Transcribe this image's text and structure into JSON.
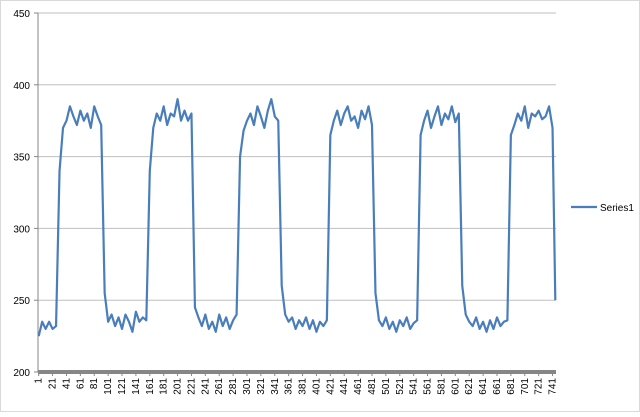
{
  "chart_data": {
    "type": "line",
    "series": [
      {
        "name": "Series1",
        "color": "#4a7ebb",
        "x": [
          1,
          6,
          11,
          16,
          21,
          26,
          31,
          36,
          41,
          46,
          51,
          56,
          61,
          66,
          71,
          76,
          81,
          86,
          91,
          96,
          101,
          106,
          111,
          116,
          121,
          126,
          131,
          136,
          141,
          146,
          151,
          156,
          161,
          166,
          171,
          176,
          181,
          186,
          191,
          196,
          201,
          206,
          211,
          216,
          221,
          226,
          231,
          236,
          241,
          246,
          251,
          256,
          261,
          266,
          271,
          276,
          281,
          286,
          291,
          296,
          301,
          306,
          311,
          316,
          321,
          326,
          331,
          336,
          341,
          346,
          351,
          356,
          361,
          366,
          371,
          376,
          381,
          386,
          391,
          396,
          401,
          406,
          411,
          416,
          421,
          426,
          431,
          436,
          441,
          446,
          451,
          456,
          461,
          466,
          471,
          476,
          481,
          486,
          491,
          496,
          501,
          506,
          511,
          516,
          521,
          526,
          531,
          536,
          541,
          546,
          551,
          556,
          561,
          566,
          571,
          576,
          581,
          586,
          591,
          596,
          601,
          606,
          611,
          616,
          621,
          626,
          631,
          636,
          641,
          646,
          651,
          656,
          661,
          666,
          671,
          676,
          681,
          686,
          691,
          696,
          701,
          706,
          711,
          716,
          721,
          726,
          731,
          736,
          741,
          745
        ],
        "values": [
          225,
          235,
          230,
          235,
          230,
          232,
          340,
          370,
          375,
          385,
          378,
          372,
          382,
          375,
          380,
          370,
          385,
          378,
          372,
          255,
          235,
          240,
          232,
          238,
          230,
          240,
          235,
          228,
          242,
          235,
          238,
          236,
          340,
          370,
          380,
          375,
          385,
          372,
          380,
          378,
          390,
          375,
          382,
          375,
          380,
          245,
          238,
          232,
          240,
          230,
          235,
          228,
          240,
          232,
          238,
          230,
          236,
          240,
          350,
          368,
          375,
          380,
          372,
          385,
          378,
          370,
          382,
          390,
          378,
          375,
          260,
          240,
          235,
          238,
          230,
          236,
          232,
          238,
          230,
          236,
          228,
          235,
          232,
          236,
          365,
          375,
          382,
          372,
          380,
          385,
          375,
          378,
          370,
          382,
          376,
          385,
          372,
          255,
          236,
          232,
          238,
          230,
          235,
          228,
          236,
          232,
          238,
          230,
          234,
          236,
          365,
          375,
          382,
          370,
          378,
          385,
          372,
          380,
          376,
          385,
          374,
          380,
          260,
          240,
          235,
          232,
          238,
          230,
          235,
          228,
          236,
          230,
          238,
          232,
          235,
          236,
          365,
          372,
          380,
          375,
          385,
          370,
          380,
          378,
          382,
          376,
          378,
          385,
          370,
          250
        ]
      }
    ],
    "xlim": [
      0,
      746
    ],
    "xticks": [
      1,
      21,
      41,
      61,
      81,
      101,
      121,
      141,
      161,
      181,
      201,
      221,
      241,
      261,
      281,
      301,
      321,
      341,
      361,
      381,
      401,
      421,
      441,
      461,
      481,
      501,
      521,
      541,
      561,
      581,
      601,
      621,
      641,
      661,
      681,
      701,
      721,
      741
    ],
    "ylim": [
      200,
      450
    ],
    "yticks": [
      200,
      250,
      300,
      350,
      400,
      450
    ],
    "grid": true,
    "legend": "right"
  }
}
